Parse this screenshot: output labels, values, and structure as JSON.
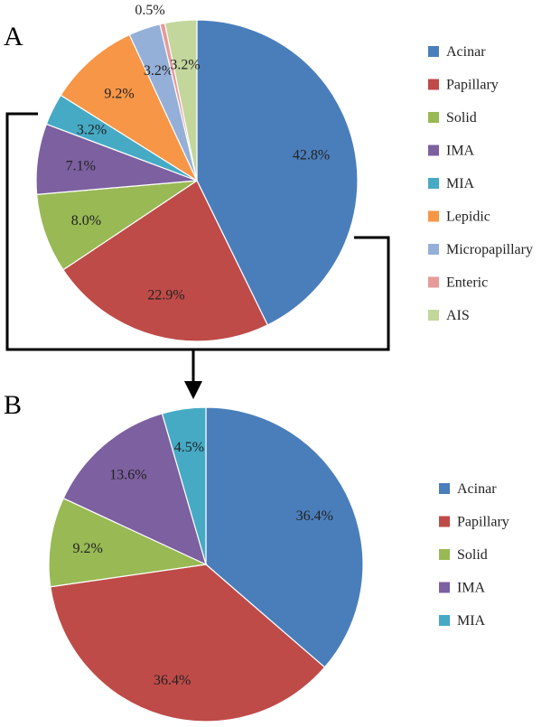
{
  "figure": {
    "panel_a_label": "A",
    "panel_b_label": "B"
  },
  "chart_data": [
    {
      "type": "pie",
      "panel": "A",
      "legend_position": "right",
      "categories": [
        "Acinar",
        "Papillary",
        "Solid",
        "IMA",
        "MIA",
        "Lepidic",
        "Micropapillary",
        "Enteric",
        "AIS"
      ],
      "values": [
        42.8,
        22.9,
        8.0,
        7.1,
        3.2,
        9.2,
        3.2,
        0.5,
        3.2
      ],
      "labels": [
        "42.8%",
        "22.9%",
        "8.0%",
        "7.1%",
        "3.2%",
        "9.2%",
        "3.2%",
        "0.5%",
        "3.2%"
      ],
      "colors": [
        "#4a7ebb",
        "#be4b48",
        "#98b954",
        "#7d60a0",
        "#46aac5",
        "#f79646",
        "#94b0d8",
        "#e69a9a",
        "#c3d69b"
      ]
    },
    {
      "type": "pie",
      "panel": "B",
      "legend_position": "right",
      "categories": [
        "Acinar",
        "Papillary",
        "Solid",
        "IMA",
        "MIA"
      ],
      "values": [
        36.4,
        36.4,
        9.2,
        13.6,
        4.5
      ],
      "labels": [
        "36.4%",
        "36.4%",
        "9.2%",
        "13.6%",
        "4.5%"
      ],
      "colors": [
        "#4a7ebb",
        "#be4b48",
        "#98b954",
        "#7d60a0",
        "#46aac5"
      ]
    }
  ]
}
